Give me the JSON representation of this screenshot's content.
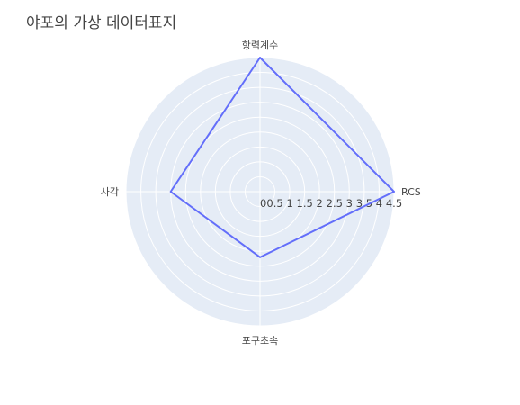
{
  "title": "야포의 가상 데이터표지",
  "chart_data": {
    "type": "radar",
    "title": "야포의 가상 데이터표지",
    "categories": [
      "항력계수",
      "RCS",
      "포구초속",
      "사각"
    ],
    "series": [
      {
        "values": [
          4.5,
          4.5,
          2.2,
          3.0
        ]
      }
    ],
    "radial_range": [
      0,
      4.5
    ],
    "radial_ticks": [
      "0",
      "0.5",
      "1",
      "1.5",
      "2",
      "2.5",
      "3",
      "3.5",
      "4",
      "4.5"
    ],
    "grid": true,
    "line_color": "#636efa",
    "background_color": "#e5ecf6",
    "grid_color": "#ffffff"
  }
}
